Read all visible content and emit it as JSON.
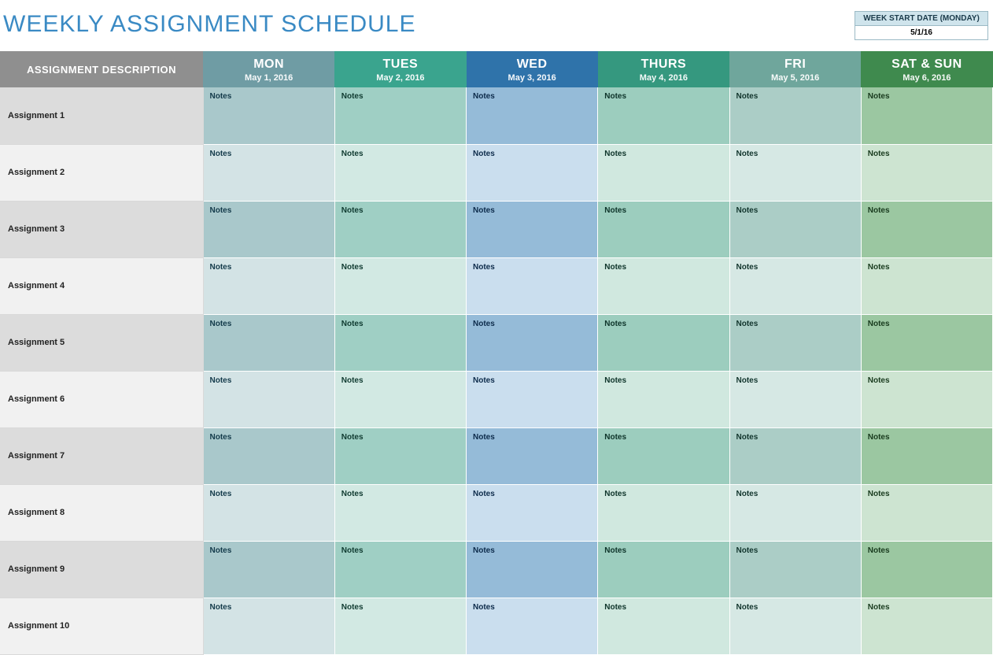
{
  "title": "WEEKLY ASSIGNMENT SCHEDULE",
  "start_date_box": {
    "label": "WEEK START DATE (MONDAY)",
    "value": "5/1/16"
  },
  "notes_label": "Notes",
  "table": {
    "desc_header": "ASSIGNMENT DESCRIPTION",
    "columns": [
      {
        "day": "MON",
        "date": "May 1, 2016",
        "header_bg": "#6f9ca4",
        "cell_odd_bg": "#a9c8cb",
        "cell_even_bg": "#d3e3e5",
        "note_color": "#133a4a"
      },
      {
        "day": "TUES",
        "date": "May 2, 2016",
        "header_bg": "#3aa48e",
        "cell_odd_bg": "#9fcfc4",
        "cell_even_bg": "#d2e9e3",
        "note_color": "#0f3a30"
      },
      {
        "day": "WED",
        "date": "May 3, 2016",
        "header_bg": "#2f73aa",
        "cell_odd_bg": "#95bbd8",
        "cell_even_bg": "#cadeee",
        "note_color": "#0c2a4a"
      },
      {
        "day": "THURS",
        "date": "May 4, 2016",
        "header_bg": "#35987f",
        "cell_odd_bg": "#9ccdbe",
        "cell_even_bg": "#d0e8df",
        "note_color": "#0d3329"
      },
      {
        "day": "FRI",
        "date": "May 5, 2016",
        "header_bg": "#6fa69c",
        "cell_odd_bg": "#abcdc6",
        "cell_even_bg": "#d6e8e4",
        "note_color": "#12352d"
      },
      {
        "day": "SAT & SUN",
        "date": "May 6, 2016",
        "header_bg": "#3f8a4e",
        "cell_odd_bg": "#9bc7a1",
        "cell_even_bg": "#cde4d1",
        "note_color": "#183a1d"
      }
    ],
    "rows": [
      "Assignment 1",
      "Assignment 2",
      "Assignment 3",
      "Assignment 4",
      "Assignment 5",
      "Assignment 6",
      "Assignment 7",
      "Assignment 8",
      "Assignment 9",
      "Assignment 10"
    ]
  },
  "colors": {
    "title": "#3a8ac4",
    "desc_header_bg": "#8f8f8f",
    "row_label_odd_bg": "#dcdcdc",
    "row_label_even_bg": "#f1f1f1",
    "startbox_label_bg": "#cfe4ec",
    "startbox_border": "#9bb9c5"
  }
}
